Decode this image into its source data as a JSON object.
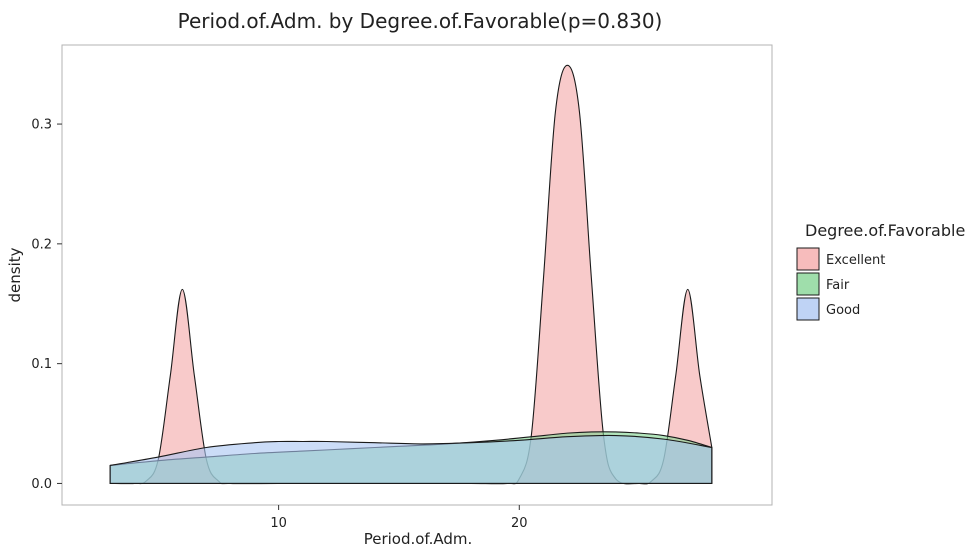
{
  "chart_data": {
    "type": "area",
    "title": "Period.of.Adm. by Degree.of.Favorable(p=0.830)",
    "xlabel": "Period.of.Adm.",
    "ylabel": "density",
    "xlim": [
      1,
      30.5
    ],
    "ylim": [
      -0.018,
      0.366
    ],
    "x_ticks": [
      10,
      20
    ],
    "y_ticks": [
      0.0,
      0.1,
      0.2,
      0.3
    ],
    "y_tick_labels": [
      "0.0",
      "0.1",
      "0.2",
      "0.3"
    ],
    "grid": false,
    "legend": {
      "title": "Degree.of.Favorable",
      "position": "right"
    },
    "series": [
      {
        "name": "Excellent",
        "color": "#f4a6a6",
        "x": [
          3,
          4,
          4.5,
          5,
          5.5,
          6,
          6.5,
          7,
          7.5,
          8,
          10,
          12,
          14,
          16,
          18,
          19.5,
          20,
          20.5,
          21,
          21.5,
          22,
          22.5,
          23,
          23.5,
          24,
          25,
          25.5,
          26,
          26.5,
          27,
          27.5,
          28
        ],
        "y": [
          0,
          0,
          0.002,
          0.02,
          0.09,
          0.162,
          0.09,
          0.02,
          0.002,
          0,
          0,
          0,
          0,
          0,
          0,
          0,
          0.004,
          0.04,
          0.17,
          0.31,
          0.349,
          0.31,
          0.17,
          0.04,
          0.004,
          0,
          0.002,
          0.02,
          0.09,
          0.162,
          0.09,
          0.03
        ]
      },
      {
        "name": "Fair",
        "color": "#7fd38f",
        "x": [
          3,
          5,
          7,
          9,
          11,
          13,
          15,
          17,
          19,
          21,
          22,
          23,
          24,
          25,
          26,
          27,
          28
        ],
        "y": [
          0.015,
          0.019,
          0.022,
          0.025,
          0.027,
          0.029,
          0.031,
          0.033,
          0.036,
          0.04,
          0.042,
          0.043,
          0.043,
          0.042,
          0.04,
          0.036,
          0.03
        ]
      },
      {
        "name": "Good",
        "color": "#a9c4f2",
        "x": [
          3,
          5,
          7,
          9,
          10,
          11,
          12,
          14,
          16,
          18,
          20,
          22,
          24,
          26,
          28
        ],
        "y": [
          0.015,
          0.022,
          0.03,
          0.034,
          0.035,
          0.035,
          0.035,
          0.034,
          0.033,
          0.034,
          0.036,
          0.039,
          0.04,
          0.037,
          0.03
        ]
      }
    ]
  }
}
